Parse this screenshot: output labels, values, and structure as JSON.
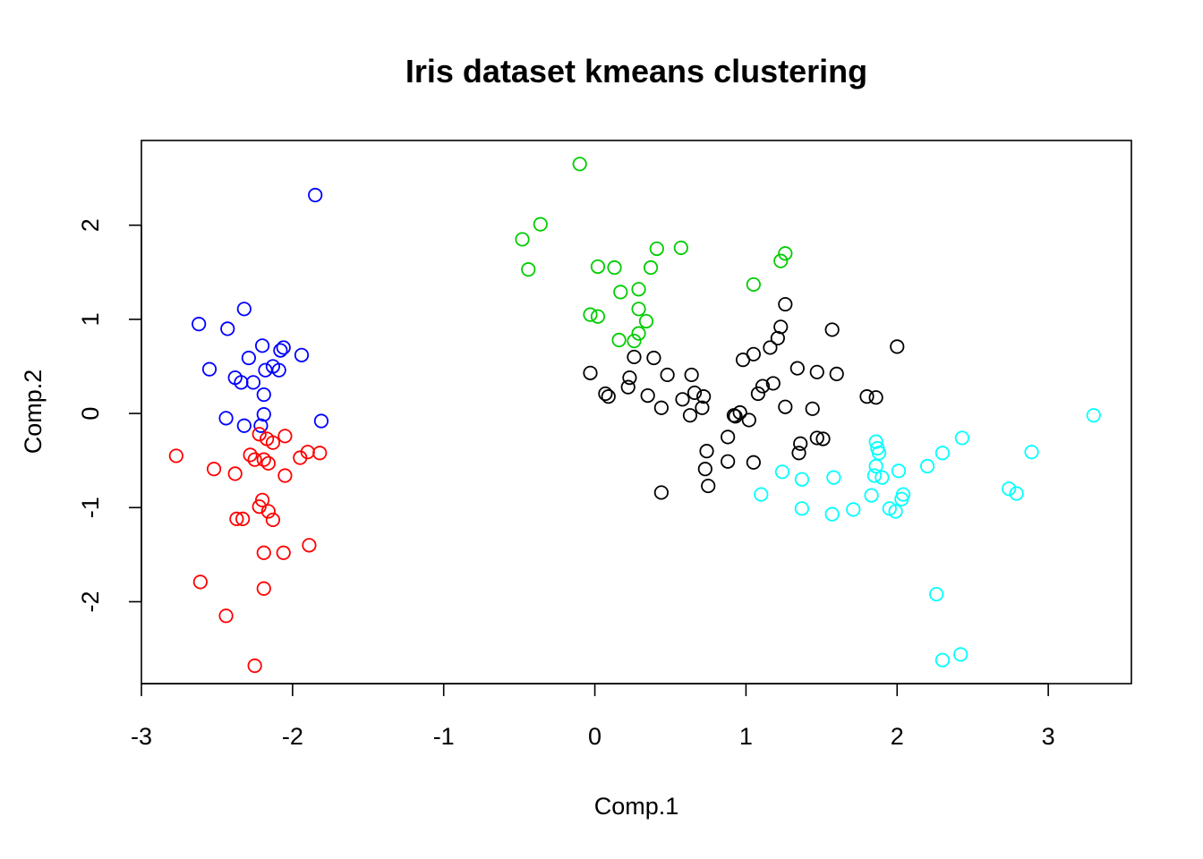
{
  "chart_data": {
    "type": "scatter",
    "title": "Iris dataset kmeans clustering",
    "xlabel": "Comp.1",
    "ylabel": "Comp.2",
    "xlim": [
      -3,
      3.55
    ],
    "ylim": [
      -2.87,
      2.9
    ],
    "xticks": [
      -3,
      -2,
      -1,
      0,
      1,
      2,
      3
    ],
    "yticks": [
      -2,
      -1,
      0,
      1,
      2
    ],
    "grid": false,
    "legend": "none",
    "marker": "open-circle",
    "series": [
      {
        "color": "#0000ff",
        "points": [
          [
            -1.85,
            2.32
          ],
          [
            -2.32,
            1.11
          ],
          [
            -2.62,
            0.95
          ],
          [
            -2.43,
            0.9
          ],
          [
            -2.2,
            0.72
          ],
          [
            -2.06,
            0.7
          ],
          [
            -2.08,
            0.67
          ],
          [
            -1.94,
            0.62
          ],
          [
            -2.29,
            0.59
          ],
          [
            -2.55,
            0.47
          ],
          [
            -2.13,
            0.5
          ],
          [
            -2.18,
            0.46
          ],
          [
            -2.09,
            0.46
          ],
          [
            -2.38,
            0.38
          ],
          [
            -2.34,
            0.33
          ],
          [
            -2.26,
            0.33
          ],
          [
            -2.19,
            0.2
          ],
          [
            -2.19,
            -0.01
          ],
          [
            -2.44,
            -0.05
          ],
          [
            -2.32,
            -0.13
          ],
          [
            -2.21,
            -0.13
          ],
          [
            -1.81,
            -0.08
          ]
        ]
      },
      {
        "color": "#ff0000",
        "points": [
          [
            -2.22,
            -0.22
          ],
          [
            -2.05,
            -0.24
          ],
          [
            -2.17,
            -0.27
          ],
          [
            -2.13,
            -0.31
          ],
          [
            -2.77,
            -0.45
          ],
          [
            -2.28,
            -0.44
          ],
          [
            -2.25,
            -0.49
          ],
          [
            -2.19,
            -0.49
          ],
          [
            -2.16,
            -0.53
          ],
          [
            -1.9,
            -0.41
          ],
          [
            -1.82,
            -0.42
          ],
          [
            -1.95,
            -0.47
          ],
          [
            -2.52,
            -0.59
          ],
          [
            -2.38,
            -0.64
          ],
          [
            -2.05,
            -0.66
          ],
          [
            -2.2,
            -0.92
          ],
          [
            -2.22,
            -0.99
          ],
          [
            -2.16,
            -1.04
          ],
          [
            -2.13,
            -1.13
          ],
          [
            -2.37,
            -1.12
          ],
          [
            -2.33,
            -1.12
          ],
          [
            -2.19,
            -1.48
          ],
          [
            -2.06,
            -1.48
          ],
          [
            -1.89,
            -1.4
          ],
          [
            -2.61,
            -1.79
          ],
          [
            -2.19,
            -1.86
          ],
          [
            -2.44,
            -2.15
          ],
          [
            -2.25,
            -2.68
          ]
        ]
      },
      {
        "color": "#00cd00",
        "points": [
          [
            -0.1,
            2.65
          ],
          [
            -0.36,
            2.01
          ],
          [
            -0.48,
            1.85
          ],
          [
            -0.44,
            1.53
          ],
          [
            0.02,
            1.56
          ],
          [
            0.13,
            1.55
          ],
          [
            0.37,
            1.55
          ],
          [
            0.41,
            1.75
          ],
          [
            0.57,
            1.76
          ],
          [
            1.26,
            1.7
          ],
          [
            1.23,
            1.62
          ],
          [
            1.05,
            1.37
          ],
          [
            0.17,
            1.29
          ],
          [
            0.29,
            1.32
          ],
          [
            0.29,
            1.11
          ],
          [
            0.34,
            0.98
          ],
          [
            0.29,
            0.85
          ],
          [
            0.26,
            0.77
          ],
          [
            0.16,
            0.78
          ],
          [
            -0.03,
            1.05
          ],
          [
            0.02,
            1.03
          ]
        ]
      },
      {
        "color": "#000000",
        "points": [
          [
            1.26,
            1.16
          ],
          [
            1.23,
            0.92
          ],
          [
            1.21,
            0.8
          ],
          [
            1.16,
            0.7
          ],
          [
            1.57,
            0.89
          ],
          [
            2.0,
            0.71
          ],
          [
            1.05,
            0.63
          ],
          [
            0.98,
            0.57
          ],
          [
            0.39,
            0.59
          ],
          [
            0.26,
            0.6
          ],
          [
            -0.03,
            0.43
          ],
          [
            0.23,
            0.38
          ],
          [
            0.48,
            0.41
          ],
          [
            0.64,
            0.41
          ],
          [
            1.34,
            0.48
          ],
          [
            1.47,
            0.44
          ],
          [
            1.6,
            0.42
          ],
          [
            1.8,
            0.18
          ],
          [
            1.86,
            0.17
          ],
          [
            0.07,
            0.21
          ],
          [
            0.09,
            0.18
          ],
          [
            0.22,
            0.28
          ],
          [
            0.35,
            0.19
          ],
          [
            0.58,
            0.15
          ],
          [
            0.66,
            0.22
          ],
          [
            0.72,
            0.18
          ],
          [
            0.71,
            0.06
          ],
          [
            0.44,
            0.06
          ],
          [
            0.63,
            -0.02
          ],
          [
            0.92,
            -0.02
          ],
          [
            0.93,
            -0.03
          ],
          [
            0.96,
            0.01
          ],
          [
            1.02,
            -0.07
          ],
          [
            1.08,
            0.21
          ],
          [
            1.11,
            0.29
          ],
          [
            1.18,
            0.32
          ],
          [
            1.26,
            0.07
          ],
          [
            1.44,
            0.05
          ],
          [
            1.36,
            -0.32
          ],
          [
            1.35,
            -0.42
          ],
          [
            1.47,
            -0.26
          ],
          [
            1.51,
            -0.27
          ],
          [
            0.74,
            -0.4
          ],
          [
            0.88,
            -0.25
          ],
          [
            0.73,
            -0.59
          ],
          [
            0.88,
            -0.51
          ],
          [
            1.05,
            -0.52
          ],
          [
            0.75,
            -0.77
          ],
          [
            0.44,
            -0.84
          ]
        ]
      },
      {
        "color": "#00ffff",
        "points": [
          [
            3.3,
            -0.02
          ],
          [
            2.43,
            -0.26
          ],
          [
            2.89,
            -0.41
          ],
          [
            2.3,
            -0.42
          ],
          [
            2.2,
            -0.56
          ],
          [
            1.86,
            -0.3
          ],
          [
            1.87,
            -0.37
          ],
          [
            1.88,
            -0.42
          ],
          [
            1.86,
            -0.56
          ],
          [
            2.01,
            -0.61
          ],
          [
            1.85,
            -0.66
          ],
          [
            1.9,
            -0.68
          ],
          [
            1.24,
            -0.62
          ],
          [
            1.37,
            -0.7
          ],
          [
            1.58,
            -0.68
          ],
          [
            2.74,
            -0.8
          ],
          [
            2.79,
            -0.85
          ],
          [
            1.1,
            -0.86
          ],
          [
            1.83,
            -0.87
          ],
          [
            2.04,
            -0.86
          ],
          [
            2.03,
            -0.91
          ],
          [
            1.95,
            -1.01
          ],
          [
            1.99,
            -1.04
          ],
          [
            1.71,
            -1.02
          ],
          [
            1.57,
            -1.07
          ],
          [
            1.37,
            -1.01
          ],
          [
            2.26,
            -1.92
          ],
          [
            2.42,
            -2.56
          ],
          [
            2.3,
            -2.62
          ]
        ]
      }
    ]
  }
}
